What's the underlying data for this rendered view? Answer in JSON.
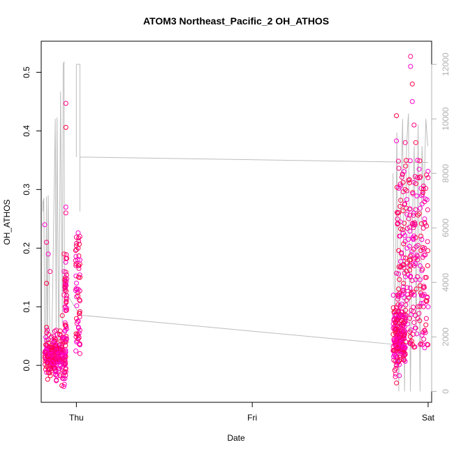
{
  "chart_data": {
    "type": "scatter",
    "title": "ATOM3 Northeast_Pacific_2 OH_ATHOS",
    "xlabel": "Date",
    "ylabel": "OH_ATHOS",
    "x_ticks": [
      "Thu",
      "Fri",
      "Sat"
    ],
    "x_tick_positions": [
      0,
      1,
      2
    ],
    "xlim": [
      -0.2,
      2.02
    ],
    "y_ticks": [
      0.0,
      0.1,
      0.2,
      0.3,
      0.4,
      0.5
    ],
    "ylim": [
      -0.063,
      0.553
    ],
    "y2_ticks": [
      0,
      2000,
      4000,
      6000,
      8000,
      10000,
      12000
    ],
    "y2lim": [
      -400,
      12850
    ],
    "grid": false,
    "legend": "none",
    "colors": {
      "points": [
        "#ff00cc",
        "#ff0088",
        "#ff0044"
      ],
      "line": "#bdbdbd",
      "axis": "#000000",
      "secondary_axis": "#b0b0b0"
    },
    "series": [
      {
        "type": "scatter",
        "points_listed": [
          [
            -0.18,
            0.24
          ],
          [
            -0.17,
            0.21
          ],
          [
            -0.17,
            0.14
          ],
          [
            -0.16,
            0.19
          ],
          [
            -0.15,
            0.16
          ],
          [
            -0.17,
            0.065
          ],
          [
            -0.17,
            0.043
          ],
          [
            -0.06,
            0.447
          ],
          [
            -0.06,
            0.406
          ],
          [
            -0.06,
            0.27
          ],
          [
            -0.06,
            0.26
          ],
          [
            -0.07,
            0.19
          ],
          [
            -0.07,
            0.16
          ],
          [
            -0.07,
            0.12
          ],
          [
            -0.08,
            0.085
          ],
          [
            -0.07,
            0.045
          ],
          [
            -0.06,
            0.04
          ],
          [
            -0.06,
            -0.005
          ],
          [
            0.01,
            0.226
          ],
          [
            0.02,
            0.22
          ],
          [
            0.01,
            0.2
          ],
          [
            0.02,
            0.18
          ],
          [
            0.01,
            0.17
          ],
          [
            0.02,
            0.15
          ],
          [
            0.01,
            0.13
          ],
          [
            0.02,
            0.11
          ],
          [
            0.0,
            0.08
          ],
          [
            0.01,
            0.075
          ],
          [
            0.02,
            0.06
          ],
          [
            0.01,
            0.045
          ],
          [
            0.02,
            0.035
          ],
          [
            0.02,
            0.02
          ],
          [
            1.82,
            0.426
          ],
          [
            1.82,
            0.383
          ],
          [
            1.87,
            0.38
          ],
          [
            1.87,
            0.3
          ],
          [
            1.9,
            0.51
          ],
          [
            1.9,
            0.527
          ],
          [
            1.91,
            0.48
          ],
          [
            1.91,
            0.45
          ],
          [
            1.92,
            0.41
          ],
          [
            1.93,
            0.38
          ],
          [
            1.94,
            0.35
          ],
          [
            1.95,
            0.32
          ],
          [
            1.97,
            0.295
          ],
          [
            1.98,
            0.25
          ],
          [
            1.98,
            0.2
          ],
          [
            1.99,
            0.15
          ],
          [
            2.0,
            0.1
          ],
          [
            1.99,
            0.08
          ],
          [
            1.98,
            0.06
          ],
          [
            1.98,
            0.03
          ],
          [
            1.82,
            0.0
          ],
          [
            1.82,
            -0.03
          ],
          [
            1.83,
            0.05
          ],
          [
            1.84,
            0.1
          ],
          [
            1.86,
            0.14
          ],
          [
            1.88,
            0.2
          ],
          [
            1.89,
            0.25
          ],
          [
            1.9,
            0.17
          ],
          [
            1.92,
            0.12
          ],
          [
            1.94,
            0.08
          ]
        ]
      },
      {
        "type": "line",
        "axis": "secondary",
        "description_values": [
          [
            -0.19,
            7000
          ],
          [
            -0.19,
            6500
          ],
          [
            -0.18,
            7100
          ],
          [
            -0.16,
            7200
          ],
          [
            -0.11,
            10000
          ],
          [
            -0.07,
            12100
          ],
          [
            -0.08,
            3700
          ],
          [
            0.0,
            8500
          ],
          [
            0.0,
            12000
          ],
          [
            0.02,
            6600
          ],
          [
            0.02,
            8400
          ],
          [
            1.85,
            8200
          ],
          [
            1.85,
            0
          ],
          [
            1.9,
            10000
          ],
          [
            1.95,
            0
          ],
          [
            1.96,
            9000
          ],
          [
            2.0,
            8500
          ]
        ]
      }
    ]
  }
}
